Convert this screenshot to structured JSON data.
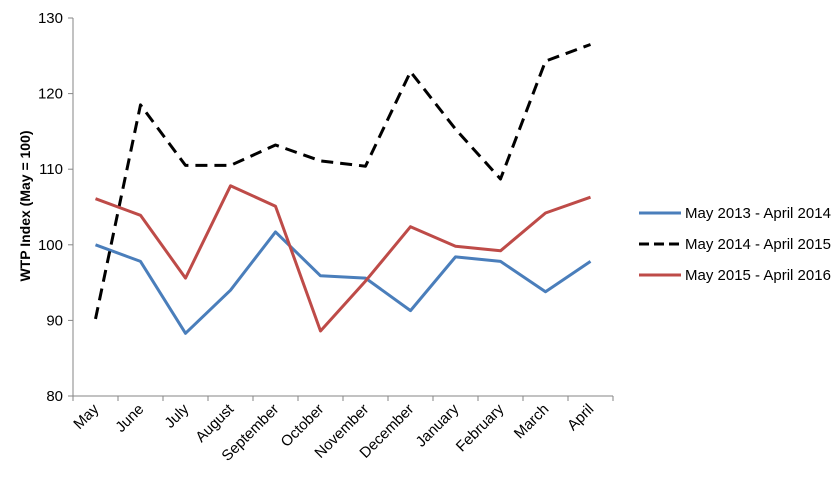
{
  "chart_data": {
    "type": "line",
    "title": "",
    "xlabel": "",
    "ylabel": "WTP Index (May = 100)",
    "ylim": [
      80,
      130
    ],
    "yticks": [
      80,
      90,
      100,
      110,
      120,
      130
    ],
    "grid": false,
    "legend_position": "right",
    "categories": [
      "May",
      "June",
      "July",
      "August",
      "September",
      "October",
      "November",
      "December",
      "January",
      "February",
      "March",
      "April"
    ],
    "series": [
      {
        "name": "May 2013 - April 2014",
        "color": "#4a7ebb",
        "dash": "solid",
        "values": [
          100,
          97.8,
          88.3,
          94,
          101.7,
          95.9,
          95.6,
          91.3,
          98.4,
          97.8,
          93.8,
          97.8
        ]
      },
      {
        "name": "May 2014 - April 2015",
        "color": "#000000",
        "dash": "dashed",
        "values": [
          90.2,
          118.5,
          110.5,
          110.5,
          113.2,
          111.1,
          110.4,
          122.9,
          115.3,
          108.7,
          124.3,
          126.5
        ]
      },
      {
        "name": "May 2015 - April 2016",
        "color": "#be4b48",
        "dash": "solid",
        "values": [
          106.1,
          103.9,
          95.6,
          107.8,
          105.1,
          88.6,
          95.2,
          102.4,
          99.8,
          99.2,
          104.2,
          106.3
        ]
      }
    ]
  }
}
